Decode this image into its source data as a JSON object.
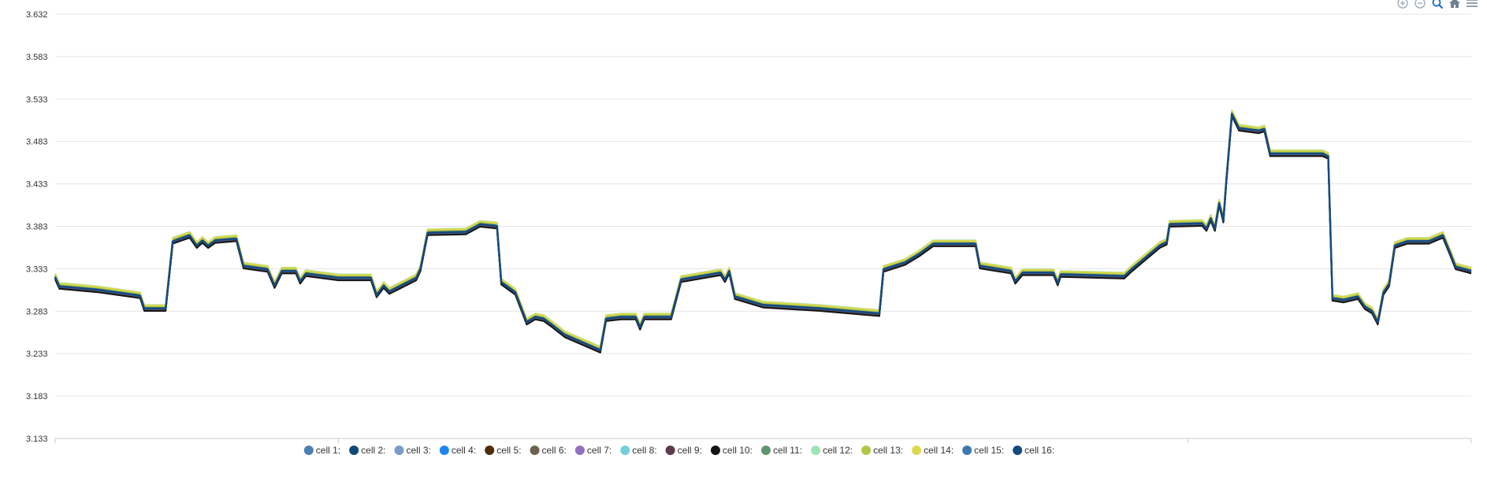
{
  "toolbar": [
    {
      "name": "zoom-in-icon",
      "color": "#9aa6b2"
    },
    {
      "name": "zoom-out-icon",
      "color": "#9aa6b2"
    },
    {
      "name": "selection-zoom-icon",
      "color": "#1e6fd0"
    },
    {
      "name": "reset-home-icon",
      "color": "#6e8192"
    },
    {
      "name": "menu-icon",
      "color": "#6e8192"
    }
  ],
  "chart_data": {
    "type": "line",
    "title": "",
    "xlabel": "",
    "ylabel": "",
    "ylim": [
      3.133,
      3.632
    ],
    "yticks": [
      "3.632",
      "3.583",
      "3.533",
      "3.483",
      "3.433",
      "3.383",
      "3.333",
      "3.283",
      "3.233",
      "3.183",
      "3.133"
    ],
    "x_range": [
      0,
      100
    ],
    "grid": true,
    "legend_position": "bottom",
    "base_profile": [
      [
        0,
        3.323
      ],
      [
        0.3,
        3.312
      ],
      [
        3,
        3.308
      ],
      [
        6,
        3.301
      ],
      [
        6.3,
        3.286
      ],
      [
        7.8,
        3.286
      ],
      [
        8.3,
        3.365
      ],
      [
        9.5,
        3.372
      ],
      [
        10,
        3.36
      ],
      [
        10.4,
        3.366
      ],
      [
        10.8,
        3.36
      ],
      [
        11.3,
        3.366
      ],
      [
        12.8,
        3.368
      ],
      [
        13.3,
        3.336
      ],
      [
        15,
        3.332
      ],
      [
        15.5,
        3.313
      ],
      [
        16,
        3.33
      ],
      [
        17,
        3.33
      ],
      [
        17.3,
        3.318
      ],
      [
        17.7,
        3.327
      ],
      [
        20,
        3.322
      ],
      [
        22.3,
        3.322
      ],
      [
        22.7,
        3.302
      ],
      [
        23.2,
        3.313
      ],
      [
        23.6,
        3.306
      ],
      [
        25.5,
        3.322
      ],
      [
        25.8,
        3.333
      ],
      [
        26.3,
        3.375
      ],
      [
        29,
        3.376
      ],
      [
        30,
        3.385
      ],
      [
        31.2,
        3.383
      ],
      [
        31.5,
        3.317
      ],
      [
        32.5,
        3.305
      ],
      [
        33.3,
        3.27
      ],
      [
        33.9,
        3.276
      ],
      [
        34.5,
        3.274
      ],
      [
        35,
        3.268
      ],
      [
        36,
        3.255
      ],
      [
        38.5,
        3.237
      ],
      [
        38.9,
        3.274
      ],
      [
        40,
        3.276
      ],
      [
        41,
        3.276
      ],
      [
        41.3,
        3.264
      ],
      [
        41.6,
        3.276
      ],
      [
        43.5,
        3.276
      ],
      [
        44.2,
        3.32
      ],
      [
        47,
        3.328
      ],
      [
        47.3,
        3.32
      ],
      [
        47.6,
        3.33
      ],
      [
        48,
        3.3
      ],
      [
        50,
        3.29
      ],
      [
        54,
        3.286
      ],
      [
        58.2,
        3.28
      ],
      [
        58.5,
        3.332
      ],
      [
        60,
        3.34
      ],
      [
        61,
        3.35
      ],
      [
        62,
        3.362
      ],
      [
        65,
        3.362
      ],
      [
        65.3,
        3.336
      ],
      [
        67.5,
        3.33
      ],
      [
        67.8,
        3.318
      ],
      [
        68.3,
        3.328
      ],
      [
        70.5,
        3.328
      ],
      [
        70.8,
        3.316
      ],
      [
        71,
        3.326
      ],
      [
        75.5,
        3.324
      ],
      [
        76,
        3.332
      ],
      [
        78,
        3.36
      ],
      [
        78.5,
        3.364
      ],
      [
        78.7,
        3.385
      ],
      [
        81,
        3.386
      ],
      [
        81.3,
        3.38
      ],
      [
        81.6,
        3.392
      ],
      [
        81.9,
        3.38
      ],
      [
        82.2,
        3.41
      ],
      [
        82.5,
        3.39
      ],
      [
        82.7,
        3.435
      ],
      [
        83.1,
        3.515
      ],
      [
        83.6,
        3.498
      ],
      [
        85,
        3.495
      ],
      [
        85.4,
        3.497
      ],
      [
        85.8,
        3.468
      ],
      [
        89.5,
        3.468
      ],
      [
        89.9,
        3.465
      ],
      [
        90.2,
        3.298
      ],
      [
        91,
        3.296
      ],
      [
        92,
        3.3
      ],
      [
        92.5,
        3.288
      ],
      [
        93,
        3.283
      ],
      [
        93.4,
        3.27
      ],
      [
        93.8,
        3.305
      ],
      [
        94.2,
        3.315
      ],
      [
        94.6,
        3.36
      ],
      [
        95.5,
        3.365
      ],
      [
        97,
        3.365
      ],
      [
        98,
        3.372
      ],
      [
        98.5,
        3.352
      ],
      [
        98.9,
        3.335
      ],
      [
        100,
        3.33
      ]
    ],
    "series": [
      {
        "name": "cell 1:",
        "color": "#4a7fb0",
        "offset": 0.0
      },
      {
        "name": "cell 2:",
        "color": "#104a7a",
        "offset": -0.001
      },
      {
        "name": "cell 3:",
        "color": "#7a9cc8",
        "offset": 0.0015
      },
      {
        "name": "cell 4:",
        "color": "#1c86ee",
        "offset": 0.0005
      },
      {
        "name": "cell 5:",
        "color": "#4d2c0a",
        "offset": -0.002
      },
      {
        "name": "cell 6:",
        "color": "#6b6250",
        "offset": -0.0015
      },
      {
        "name": "cell 7:",
        "color": "#9270c0",
        "offset": 0.001
      },
      {
        "name": "cell 8:",
        "color": "#72d0dc",
        "offset": 0.003
      },
      {
        "name": "cell 9:",
        "color": "#5e3a4e",
        "offset": -0.0025
      },
      {
        "name": "cell 10:",
        "color": "#151515",
        "offset": -0.003
      },
      {
        "name": "cell 11:",
        "color": "#5f9470",
        "offset": 0.002
      },
      {
        "name": "cell 12:",
        "color": "#9ee4b6",
        "offset": 0.004
      },
      {
        "name": "cell 13:",
        "color": "#b0c646",
        "offset": 0.0025
      },
      {
        "name": "cell 14:",
        "color": "#dcd84e",
        "offset": 0.0035
      },
      {
        "name": "cell 15:",
        "color": "#3e7ab0",
        "offset": -0.0005
      },
      {
        "name": "cell 16:",
        "color": "#154a80",
        "offset": 0.0
      }
    ]
  }
}
